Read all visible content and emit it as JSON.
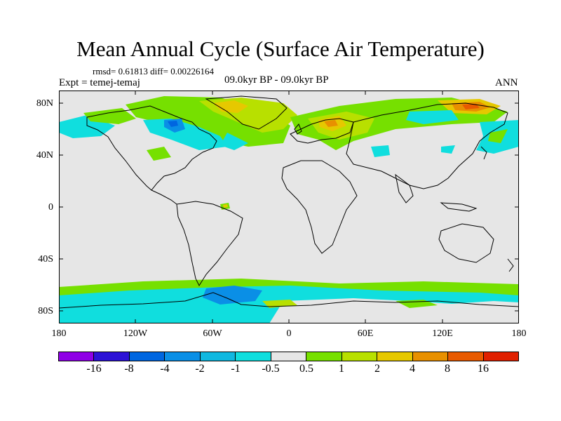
{
  "header": {
    "title": "Mean Annual Cycle (Surface Air Temperature)",
    "stats": "rmsd= 0.61813 diff= 0.00226164",
    "expt": "Expt = temej-temaj",
    "period": "09.0kyr BP - 09.0kyr BP",
    "season": "ANN"
  },
  "axes": {
    "lat_labels": [
      "80N",
      "40N",
      "0",
      "40S",
      "80S"
    ],
    "lon_labels": [
      "180",
      "120W",
      "60W",
      "0",
      "60E",
      "120E",
      "180"
    ]
  },
  "colorbar": {
    "labels": [
      "-16",
      "-8",
      "-4",
      "-2",
      "-1",
      "-0.5",
      "0.5",
      "1",
      "2",
      "4",
      "8",
      "16"
    ],
    "colors": [
      "#8f00e6",
      "#2c12d6",
      "#0066e0",
      "#0a8fe6",
      "#10b8e0",
      "#10dede",
      "#e6e6e6",
      "#76e000",
      "#b8e000",
      "#e6c800",
      "#e89000",
      "#e85a00",
      "#e02000"
    ]
  },
  "map": {
    "ocean_color": "#e6e6e6",
    "coast_color": "#000000"
  }
}
